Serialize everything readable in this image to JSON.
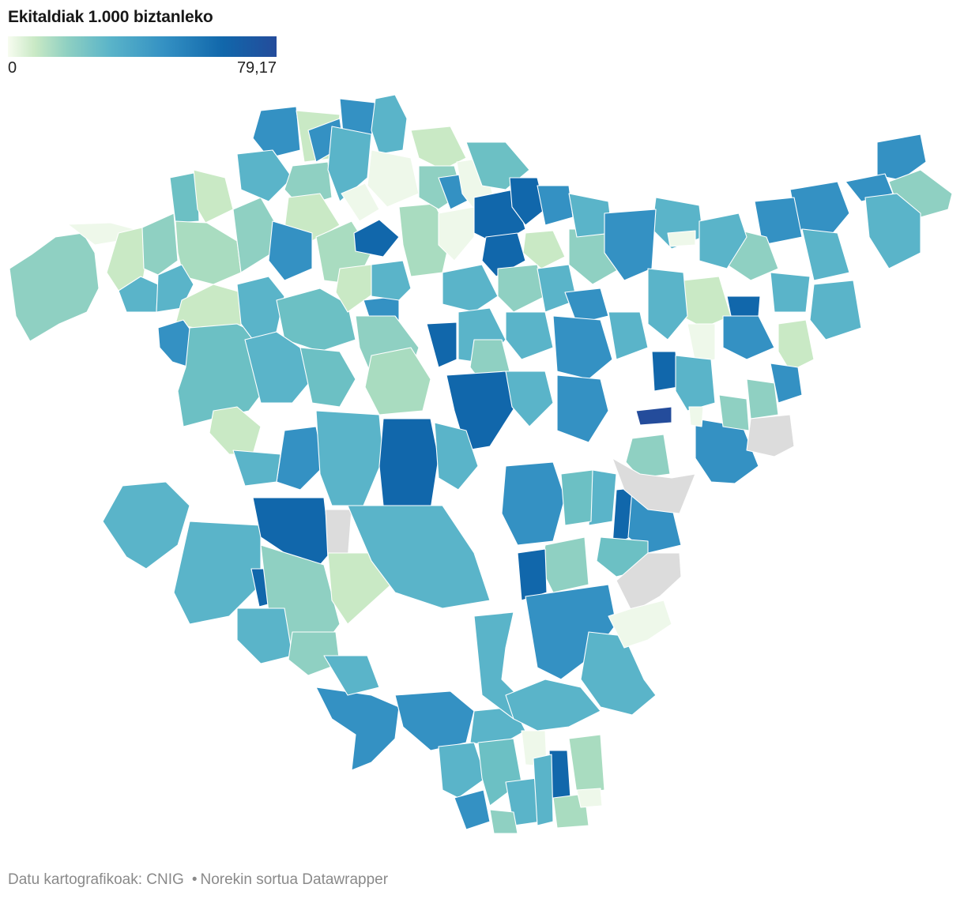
{
  "header": {
    "title": "Ekitaldiak 1.000 biztanleko"
  },
  "legend": {
    "min_label": "0",
    "max_label": "79,17",
    "min_value": 0,
    "max_value": 79.17,
    "colors": [
      "#f7fcf0",
      "#c9e9c5",
      "#8fd0c2",
      "#5ab4c9",
      "#3491c3",
      "#1167ab",
      "#244c9b"
    ],
    "no_data_color": "#dcdcdc"
  },
  "map": {
    "type": "choropleth",
    "region": "Euskadi (Bizkaia, Gipuzkoa, Araba) — udalerriak"
  },
  "footer": {
    "source": "Datu kartografikoak: CNIG",
    "credit": "Norekin sortua Datawrapper"
  }
}
